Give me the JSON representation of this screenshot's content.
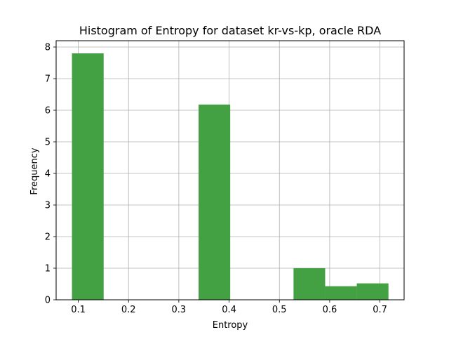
{
  "chart_data": {
    "type": "bar",
    "title": "Histogram of Entropy for dataset kr-vs-kp, oracle RDA",
    "xlabel": "Entropy",
    "ylabel": "Frequency",
    "xlim": [
      0.056,
      0.748
    ],
    "ylim": [
      0,
      8.2
    ],
    "grid": true,
    "bar_color": "#43a143",
    "x_ticks": [
      0.1,
      0.2,
      0.3,
      0.4,
      0.5,
      0.6,
      0.7
    ],
    "x_tick_labels": [
      "0.1",
      "0.2",
      "0.3",
      "0.4",
      "0.5",
      "0.6",
      "0.7"
    ],
    "y_ticks": [
      0,
      1,
      2,
      3,
      4,
      5,
      6,
      7,
      8
    ],
    "y_tick_labels": [
      "0",
      "1",
      "2",
      "3",
      "4",
      "5",
      "6",
      "7",
      "8"
    ],
    "bins": [
      {
        "start": 0.0875,
        "end": 0.1505,
        "value": 7.8
      },
      {
        "start": 0.1505,
        "end": 0.2134,
        "value": 0
      },
      {
        "start": 0.2134,
        "end": 0.2763,
        "value": 0
      },
      {
        "start": 0.2763,
        "end": 0.3393,
        "value": 0
      },
      {
        "start": 0.3393,
        "end": 0.4022,
        "value": 6.18
      },
      {
        "start": 0.4022,
        "end": 0.4651,
        "value": 0
      },
      {
        "start": 0.4651,
        "end": 0.5281,
        "value": 0
      },
      {
        "start": 0.5281,
        "end": 0.591,
        "value": 1.0
      },
      {
        "start": 0.591,
        "end": 0.6539,
        "value": 0.43
      },
      {
        "start": 0.6539,
        "end": 0.7169,
        "value": 0.52
      }
    ]
  }
}
